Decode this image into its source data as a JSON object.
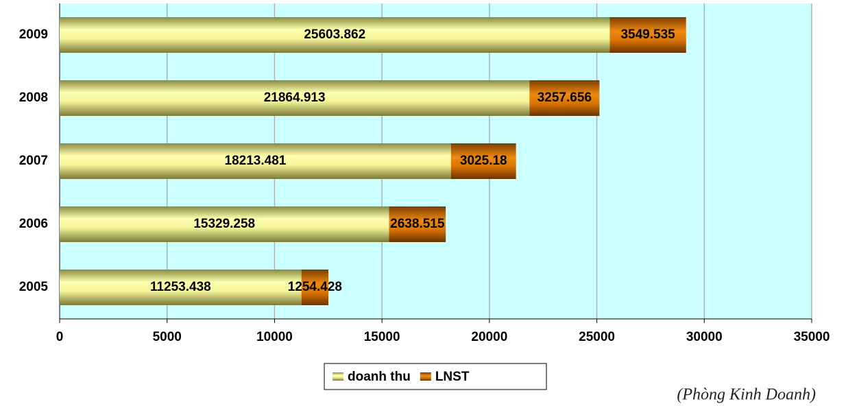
{
  "chart_data": {
    "type": "stacked-barh",
    "categories": [
      "2009",
      "2008",
      "2007",
      "2006",
      "2005"
    ],
    "series": [
      {
        "name": "doanh thu",
        "color": "#f0f090",
        "values": [
          25603.862,
          21864.913,
          18213.481,
          15329.258,
          11253.438
        ]
      },
      {
        "name": "LNST",
        "color": "#e07a00",
        "values": [
          3549.535,
          3257.656,
          3025.18,
          2638.515,
          1254.428
        ]
      }
    ],
    "xlim": [
      0,
      35000
    ],
    "xticks": [
      0,
      5000,
      10000,
      15000,
      20000,
      25000,
      30000,
      35000
    ],
    "grid": true,
    "legend": "bottom",
    "annotation": "(Phòng Kinh Doanh)"
  }
}
